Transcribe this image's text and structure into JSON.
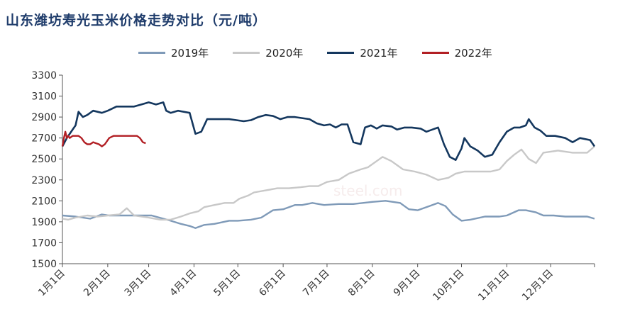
{
  "title": "山东潍坊寿光玉米价格走势对比（元/吨）",
  "watermark": "steel.com",
  "chart_data": {
    "type": "line",
    "title": "山东潍坊寿光玉米价格走势对比（元/吨）",
    "ylim": [
      1500,
      3300
    ],
    "yticks": [
      1500,
      1700,
      1900,
      2100,
      2300,
      2500,
      2700,
      2900,
      3100,
      3300
    ],
    "xlim": [
      1,
      365
    ],
    "xticks": [
      {
        "label": "1月1日",
        "day": 1
      },
      {
        "label": "2月1日",
        "day": 32
      },
      {
        "label": "3月1日",
        "day": 60
      },
      {
        "label": "4月1日",
        "day": 91
      },
      {
        "label": "5月1日",
        "day": 121
      },
      {
        "label": "6月1日",
        "day": 152
      },
      {
        "label": "7月1日",
        "day": 182
      },
      {
        "label": "8月1日",
        "day": 213
      },
      {
        "label": "9月1日",
        "day": 244
      },
      {
        "label": "10月1日",
        "day": 274
      },
      {
        "label": "11月1日",
        "day": 305
      },
      {
        "label": "12月1日",
        "day": 335
      }
    ],
    "legend_position": "top",
    "series": [
      {
        "name": "2019年",
        "color": "#7f9ab8",
        "x": [
          1,
          10,
          20,
          28,
          33,
          45,
          55,
          62,
          70,
          75,
          82,
          88,
          92,
          98,
          105,
          115,
          121,
          130,
          137,
          145,
          152,
          160,
          165,
          172,
          180,
          190,
          200,
          213,
          222,
          232,
          238,
          244,
          252,
          258,
          263,
          268,
          274,
          280,
          290,
          300,
          305,
          313,
          318,
          325,
          330,
          337,
          345,
          352,
          360,
          365
        ],
        "y": [
          1960,
          1950,
          1930,
          1970,
          1960,
          1960,
          1960,
          1960,
          1930,
          1910,
          1880,
          1860,
          1840,
          1870,
          1880,
          1910,
          1910,
          1920,
          1940,
          2010,
          2020,
          2060,
          2060,
          2080,
          2060,
          2070,
          2070,
          2090,
          2100,
          2080,
          2020,
          2010,
          2050,
          2080,
          2050,
          1970,
          1910,
          1920,
          1950,
          1950,
          1960,
          2010,
          2010,
          1990,
          1960,
          1960,
          1950,
          1950,
          1950,
          1930
        ]
      },
      {
        "name": "2020年",
        "color": "#c8c8c8",
        "x": [
          1,
          5,
          10,
          18,
          25,
          32,
          40,
          45,
          50,
          55,
          60,
          68,
          75,
          82,
          88,
          94,
          98,
          105,
          112,
          118,
          122,
          128,
          132,
          140,
          148,
          156,
          164,
          170,
          176,
          182,
          190,
          197,
          205,
          210,
          216,
          220,
          226,
          234,
          242,
          250,
          258,
          265,
          270,
          276,
          282,
          288,
          294,
          300,
          305,
          310,
          315,
          320,
          325,
          330,
          340,
          350,
          360,
          365
        ],
        "y": [
          1930,
          1920,
          1940,
          1960,
          1950,
          1960,
          1970,
          2030,
          1960,
          1950,
          1940,
          1920,
          1920,
          1950,
          1980,
          2000,
          2040,
          2060,
          2080,
          2080,
          2120,
          2150,
          2180,
          2200,
          2220,
          2220,
          2230,
          2240,
          2240,
          2280,
          2300,
          2360,
          2400,
          2420,
          2480,
          2520,
          2480,
          2400,
          2380,
          2350,
          2300,
          2320,
          2360,
          2380,
          2380,
          2380,
          2380,
          2400,
          2480,
          2540,
          2590,
          2500,
          2460,
          2560,
          2580,
          2560,
          2560,
          2620
        ]
      },
      {
        "name": "2021年",
        "color": "#14375e",
        "x": [
          1,
          4,
          8,
          10,
          12,
          15,
          18,
          22,
          28,
          32,
          38,
          45,
          50,
          55,
          60,
          65,
          70,
          72,
          75,
          80,
          88,
          92,
          96,
          100,
          105,
          110,
          115,
          120,
          125,
          130,
          135,
          140,
          145,
          150,
          155,
          160,
          165,
          170,
          175,
          180,
          184,
          188,
          192,
          196,
          200,
          205,
          208,
          212,
          216,
          220,
          226,
          230,
          235,
          240,
          246,
          250,
          254,
          258,
          262,
          266,
          270,
          274,
          276,
          280,
          285,
          290,
          295,
          300,
          305,
          310,
          314,
          318,
          320,
          324,
          328,
          332,
          338,
          345,
          350,
          355,
          362,
          365
        ],
        "y": [
          2620,
          2700,
          2780,
          2820,
          2950,
          2900,
          2920,
          2960,
          2940,
          2960,
          3000,
          3000,
          3000,
          3020,
          3040,
          3020,
          3040,
          2960,
          2940,
          2960,
          2940,
          2740,
          2760,
          2880,
          2880,
          2880,
          2880,
          2870,
          2860,
          2870,
          2900,
          2920,
          2910,
          2880,
          2900,
          2900,
          2890,
          2880,
          2840,
          2820,
          2830,
          2800,
          2830,
          2830,
          2660,
          2640,
          2800,
          2820,
          2790,
          2820,
          2810,
          2780,
          2800,
          2800,
          2790,
          2760,
          2780,
          2800,
          2640,
          2520,
          2490,
          2600,
          2700,
          2620,
          2580,
          2520,
          2540,
          2660,
          2760,
          2800,
          2800,
          2820,
          2880,
          2800,
          2770,
          2720,
          2720,
          2700,
          2660,
          2700,
          2680,
          2620
        ]
      },
      {
        "name": "2022年",
        "color": "#b21f24",
        "x": [
          1,
          2,
          3,
          4,
          5,
          6,
          8,
          10,
          12,
          14,
          16,
          18,
          20,
          22,
          24,
          26,
          28,
          30,
          33,
          36,
          38,
          40,
          42,
          44,
          46,
          48,
          50,
          52,
          54,
          56,
          58
        ],
        "y": [
          2620,
          2700,
          2760,
          2700,
          2720,
          2700,
          2720,
          2720,
          2720,
          2700,
          2660,
          2640,
          2640,
          2660,
          2650,
          2640,
          2620,
          2640,
          2700,
          2720,
          2720,
          2720,
          2720,
          2720,
          2720,
          2720,
          2720,
          2720,
          2700,
          2660,
          2650
        ]
      }
    ]
  }
}
